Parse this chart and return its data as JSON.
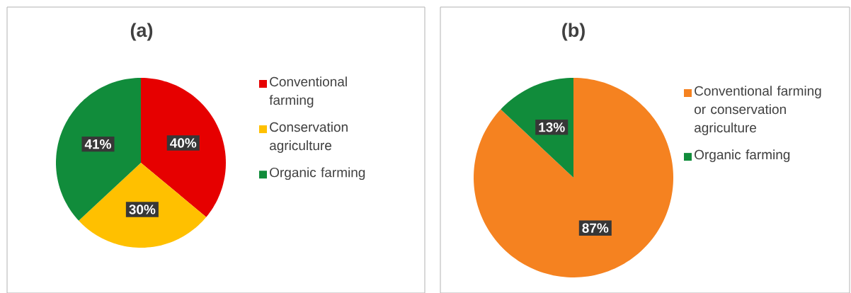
{
  "chart_data": [
    {
      "type": "pie",
      "title": "(a)",
      "categories": [
        "Conventional farming",
        "Conservation agriculture",
        "Organic farming"
      ],
      "values": [
        40,
        30,
        41
      ],
      "colors": [
        "#e60000",
        "#ffc000",
        "#118c3b"
      ],
      "value_labels": [
        "40%",
        "30%",
        "41%"
      ],
      "legend": "right"
    },
    {
      "type": "pie",
      "title": "(b)",
      "categories": [
        "Conventional farming or conservation agriculture",
        "Organic farming"
      ],
      "values": [
        87,
        13
      ],
      "colors": [
        "#f58220",
        "#118c3b"
      ],
      "value_labels": [
        "87%",
        "13%"
      ],
      "legend": "right"
    }
  ]
}
